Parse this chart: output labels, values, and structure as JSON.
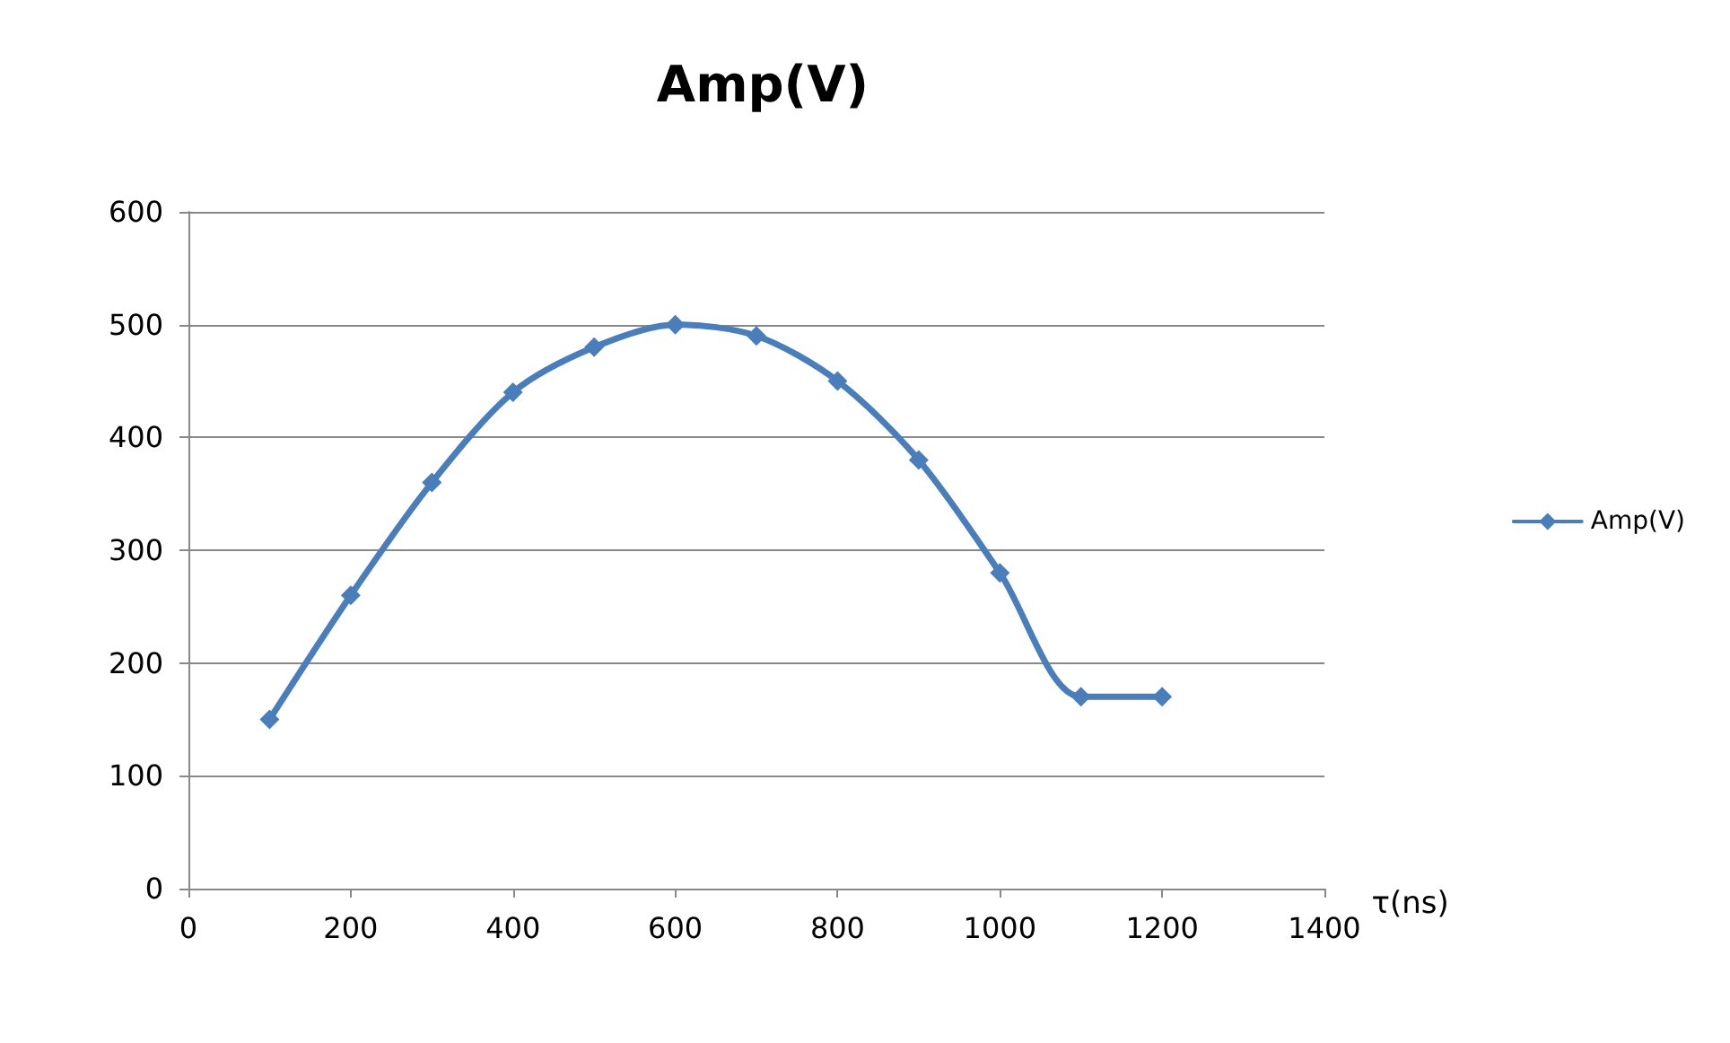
{
  "chart_data": {
    "type": "line",
    "title": "Amp(V)",
    "xlabel": "τ(ns)",
    "x": [
      100,
      200,
      300,
      400,
      500,
      600,
      700,
      800,
      900,
      1000,
      1100,
      1200
    ],
    "series": [
      {
        "name": "Amp(V)",
        "color": "#4a7ebb",
        "values": [
          150,
          260,
          360,
          440,
          480,
          500,
          490,
          450,
          380,
          280,
          170,
          170
        ]
      }
    ],
    "xlim": [
      0,
      1400
    ],
    "xticks": [
      0,
      200,
      400,
      600,
      800,
      1000,
      1200,
      1400
    ],
    "ylim": [
      0,
      600
    ],
    "yticks": [
      0,
      100,
      200,
      300,
      400,
      500,
      600
    ],
    "grid": "y",
    "legend": "right",
    "marker": "diamond",
    "line_style": "solid"
  }
}
